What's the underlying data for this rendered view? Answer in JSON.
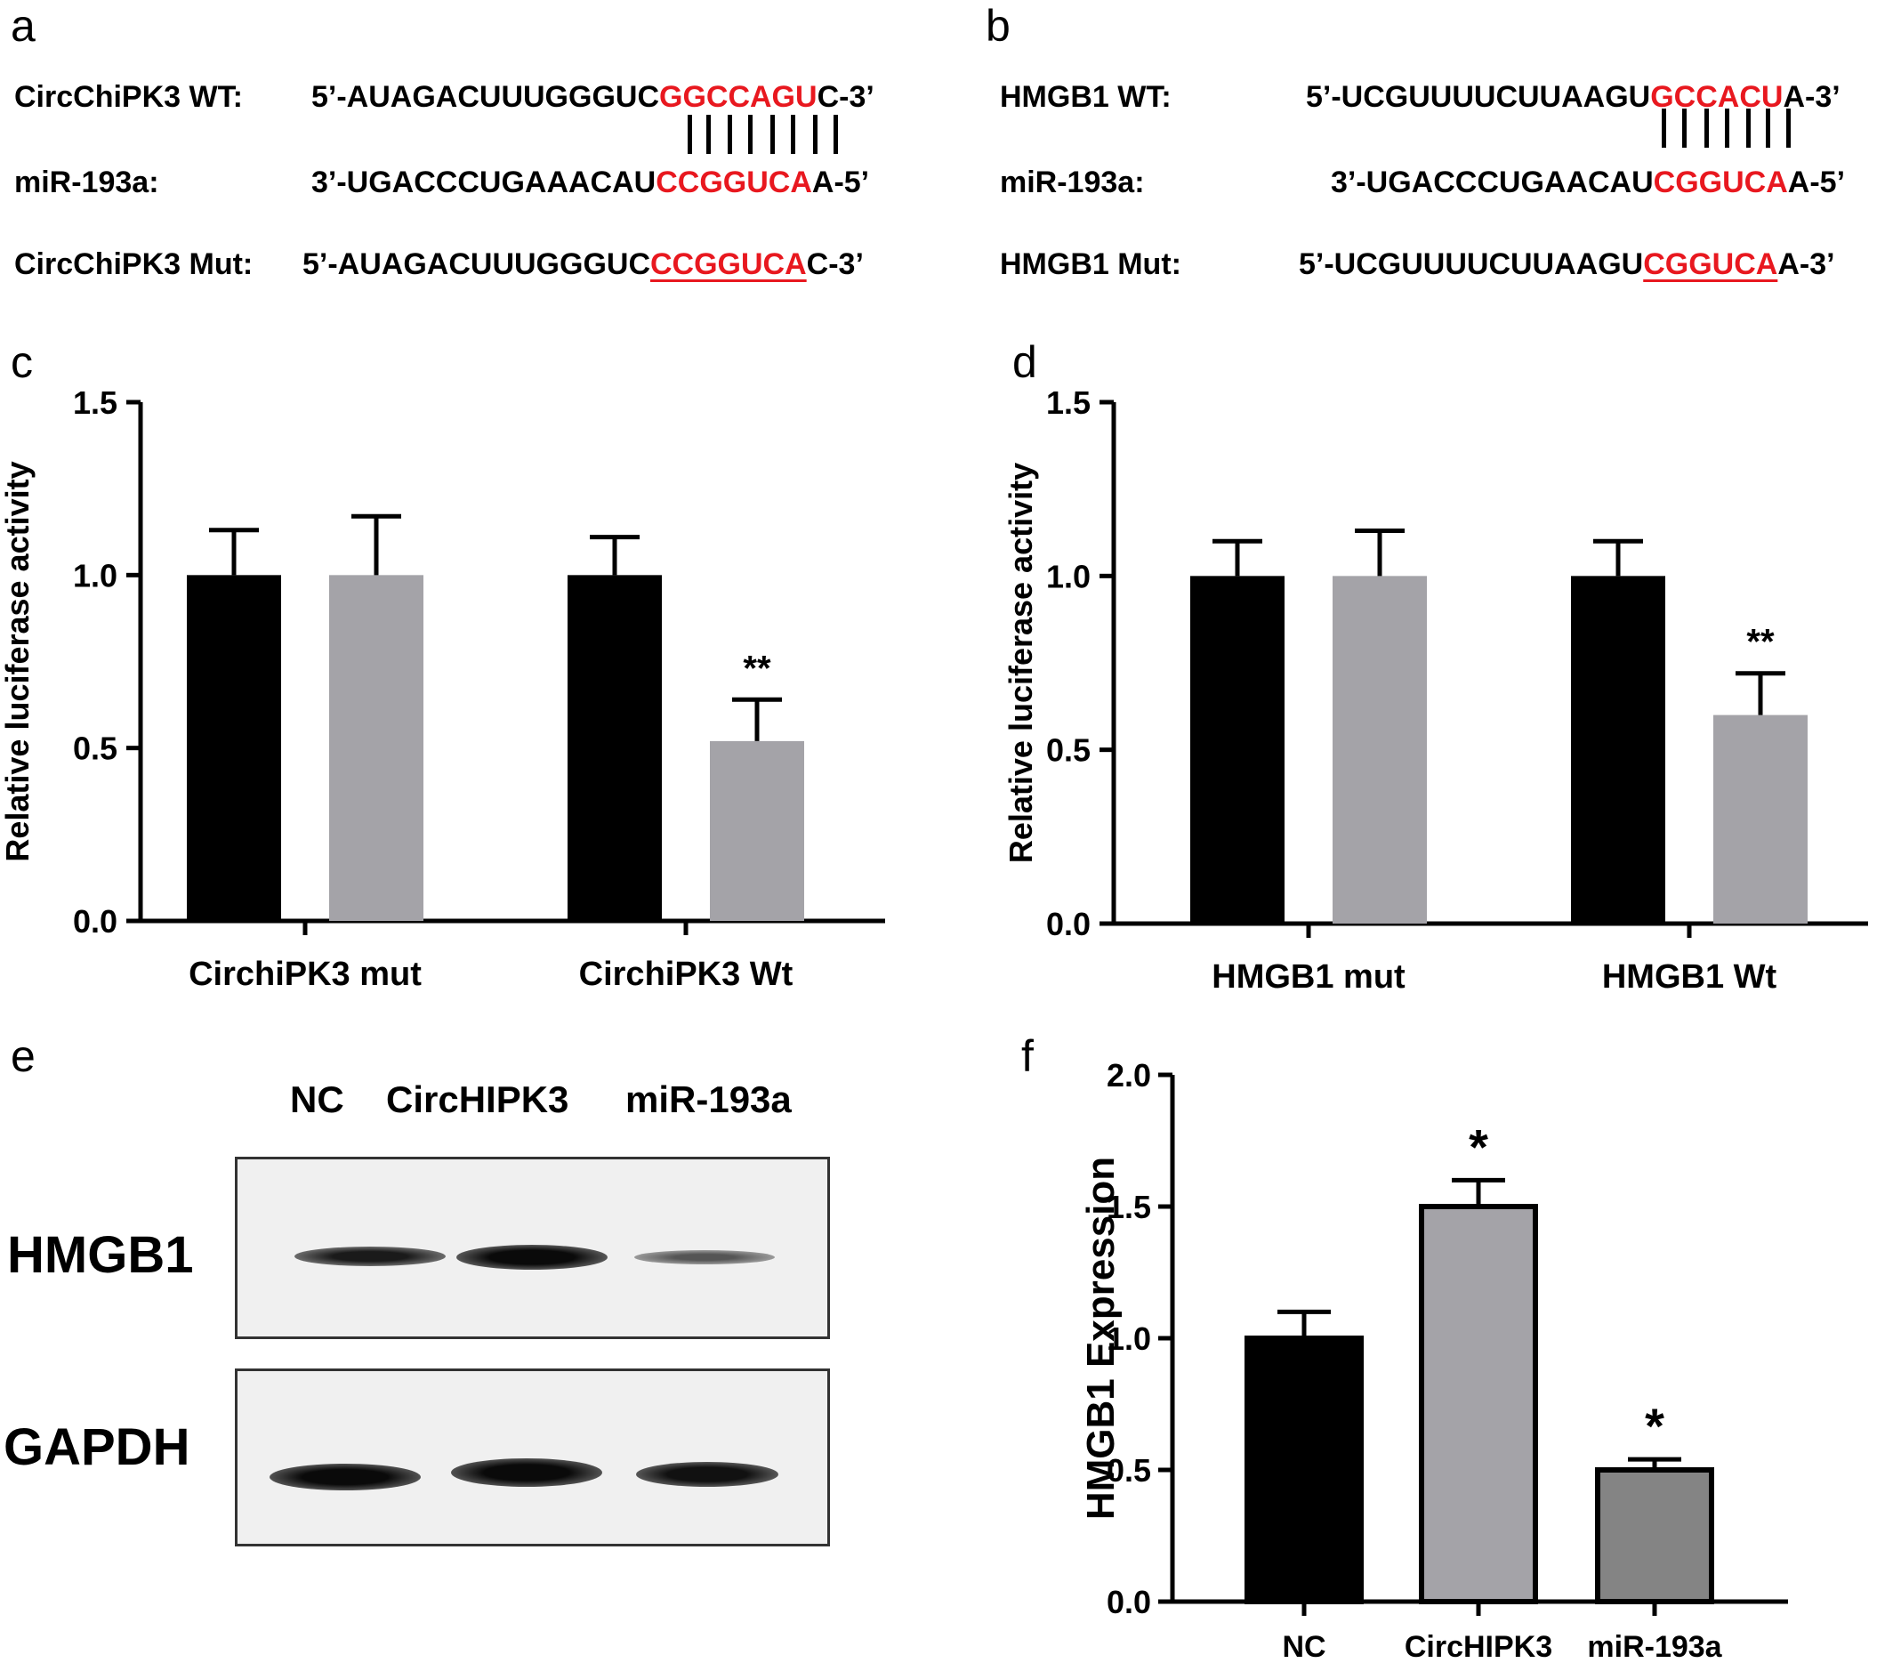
{
  "panels": {
    "a": {
      "letter": "a",
      "rows": [
        {
          "label": "CircChiPK3 WT:",
          "pre": "5’-AUAGACUUUGGGUC",
          "hl": "GGCCAGU",
          "post": "C-3’"
        },
        {
          "label": "miR-193a:",
          "pre": "3’-UGACCCUGAAACAU",
          "hl": "CCGGUCA",
          "post": "A-5’"
        },
        {
          "label": "CircChiPK3 Mut:",
          "pre": "5’-AUAGACUUUGGGUC",
          "hl": "CCGGUCA",
          "post": "C-3’"
        }
      ]
    },
    "b": {
      "letter": "b",
      "rows": [
        {
          "label": "HMGB1 WT:",
          "pre": "5’-UCGUUUUCUUAAGU",
          "hl": "GCCACU",
          "post": "A-3’"
        },
        {
          "label": "miR-193a:",
          "pre": "3’-UGACCCUGAACAU",
          "hl": "CGGUCA",
          "post": "A-5’"
        },
        {
          "label": "HMGB1 Mut:",
          "pre": "5’-UCGUUUUCUUAAGU",
          "hl": "CGGUCA",
          "post": "A-3’"
        }
      ]
    },
    "e": {
      "letter": "e",
      "lanes": [
        "NC",
        "CircHIPK3",
        "miR-193a"
      ],
      "blots": [
        "HMGB1",
        "GAPDH"
      ]
    }
  },
  "colors": {
    "black": "#000000",
    "gray": "#a4a3a8",
    "dark_gray": "#848484",
    "red": "#e8181f"
  },
  "chart_data": [
    {
      "panel": "c",
      "type": "bar",
      "categories": [
        "CirchiPK3 mut",
        "CirchiPK3 Wt"
      ],
      "series": [
        {
          "values": [
            1.0,
            1.0
          ],
          "errors": [
            0.13,
            0.11
          ],
          "color": "#000000"
        },
        {
          "values": [
            1.0,
            0.52
          ],
          "errors": [
            0.17,
            0.12
          ],
          "color": "#a4a3a8"
        }
      ],
      "annotations": [
        "",
        "**"
      ],
      "ylabel": "Relative luciferase activity",
      "ylim": [
        0,
        1.5
      ],
      "yticks": [
        "0.0",
        "0.5",
        "1.0",
        "1.5"
      ]
    },
    {
      "panel": "d",
      "type": "bar",
      "categories": [
        "HMGB1 mut",
        "HMGB1 Wt"
      ],
      "series": [
        {
          "values": [
            1.0,
            1.0
          ],
          "errors": [
            0.1,
            0.1
          ],
          "color": "#000000"
        },
        {
          "values": [
            1.0,
            0.6
          ],
          "errors": [
            0.13,
            0.12
          ],
          "color": "#a4a3a8"
        }
      ],
      "annotations": [
        "",
        "**"
      ],
      "ylabel": "Relative luciferase activity",
      "ylim": [
        0,
        1.5
      ],
      "yticks": [
        "0.0",
        "0.5",
        "1.0",
        "1.5"
      ]
    },
    {
      "panel": "f",
      "type": "bar",
      "categories": [
        "NC",
        "CircHIPK3",
        "miR-193a"
      ],
      "values": [
        1.0,
        1.5,
        0.5
      ],
      "errors": [
        0.1,
        0.1,
        0.04
      ],
      "colors": [
        "#000000",
        "#a4a3a8",
        "#848484"
      ],
      "annotations": [
        "",
        "*",
        "*"
      ],
      "ylabel": "HMGB1 Expression",
      "ylim": [
        0,
        2.0
      ],
      "yticks": [
        "0.0",
        "0.5",
        "1.0",
        "1.5",
        "2.0"
      ]
    }
  ]
}
